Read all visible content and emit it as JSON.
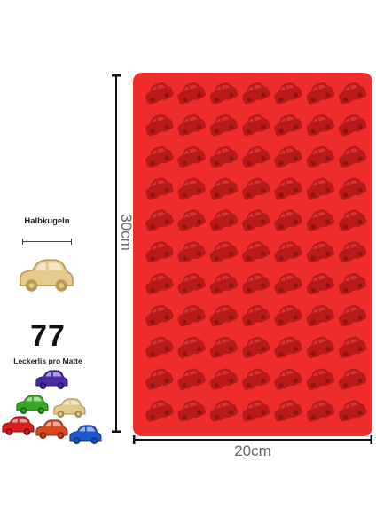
{
  "legend": {
    "shape_label": "Halbkugeln",
    "count": "77",
    "count_label": "Leckerlis pro Matte"
  },
  "dimensions": {
    "width": "20cm",
    "height": "30cm"
  },
  "mold": {
    "rows": 11,
    "columns": 7,
    "color": "#ef2e2c",
    "cavity_color": "#b81a18"
  },
  "icons": {
    "cavity": "car-icon",
    "sample": "car-icon"
  },
  "colors": {
    "yellow_car": "#e7c98c",
    "purple_car": "#4a2aa6",
    "green_car": "#35a824",
    "beige_car": "#e3c98f",
    "red_car": "#d61f1f",
    "orange_car": "#d9471e",
    "blue_car": "#1e57c9"
  }
}
